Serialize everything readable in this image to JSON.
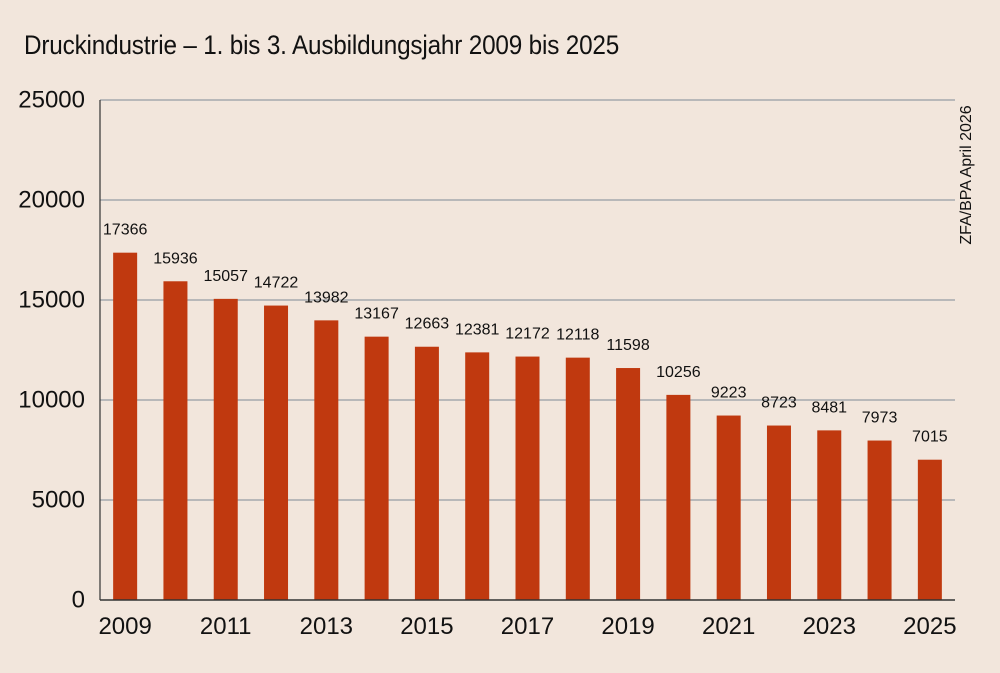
{
  "chart_data": {
    "type": "bar",
    "title": "Druckindustrie – 1. bis 3. Ausbildungsjahr 2009 bis 2025",
    "source": "ZFA/BPA April 2026",
    "categories": [
      "2009",
      "2010",
      "2011",
      "2012",
      "2013",
      "2014",
      "2015",
      "2016",
      "2017",
      "2018",
      "2019",
      "2020",
      "2021",
      "2022",
      "2023",
      "2024",
      "2025"
    ],
    "x_tick_labels": [
      "2009",
      "",
      "2011",
      "",
      "2013",
      "",
      "2015",
      "",
      "2017",
      "",
      "2019",
      "",
      "2021",
      "",
      "2023",
      "",
      "2025"
    ],
    "values": [
      17366,
      15936,
      15057,
      14722,
      13982,
      13167,
      12663,
      12381,
      12172,
      12118,
      11598,
      10256,
      9223,
      8723,
      8481,
      7973,
      7015
    ],
    "ylim": [
      0,
      25000
    ],
    "y_ticks": [
      "0",
      "5000",
      "10000",
      "15000",
      "20000",
      "25000"
    ],
    "grid": true,
    "bar_color": "#c0390f",
    "grid_color": "#7f8a96",
    "background": "#f2e6dc"
  }
}
